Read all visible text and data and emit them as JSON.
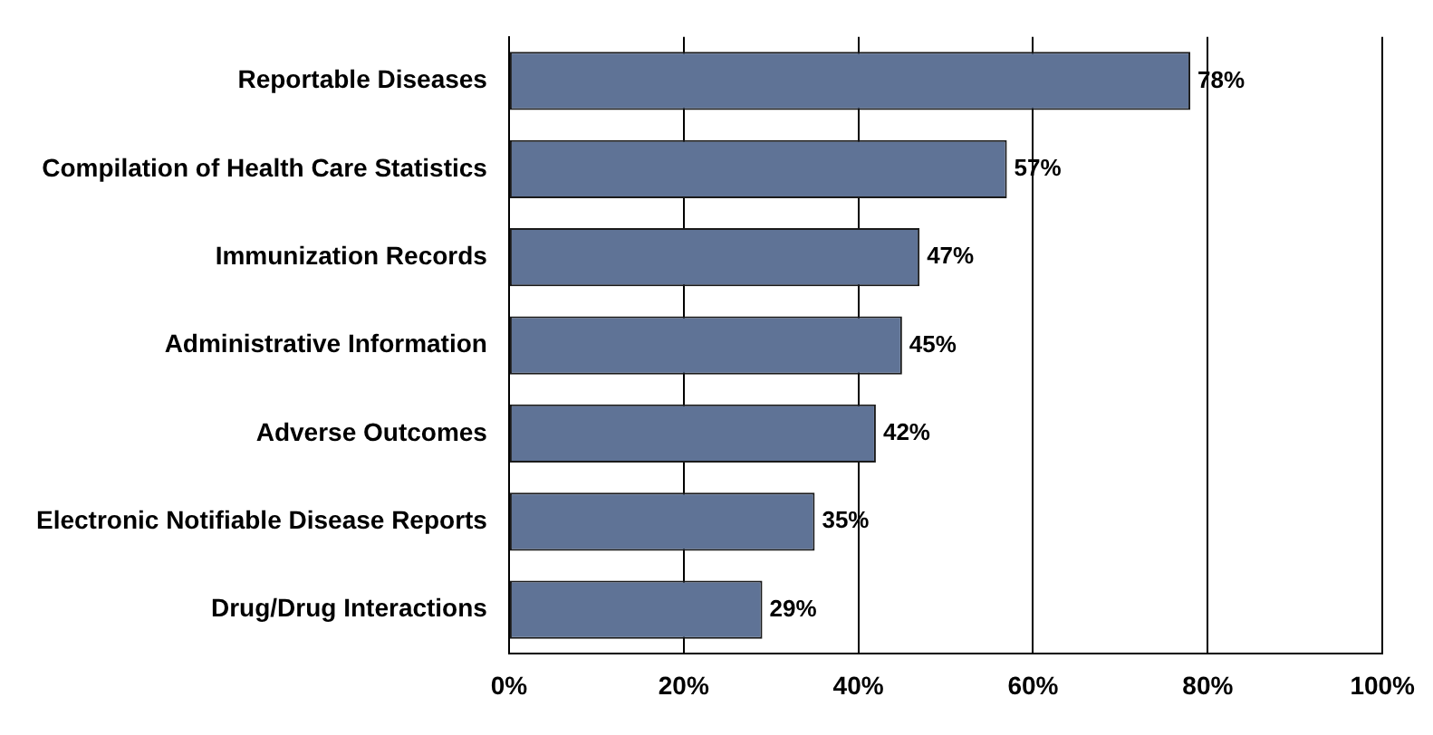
{
  "chart_data": {
    "type": "bar",
    "orientation": "horizontal",
    "categories": [
      "Reportable Diseases",
      "Compilation of Health Care Statistics",
      "Immunization Records",
      "Administrative Information",
      "Adverse Outcomes",
      "Electronic Notifiable Disease Reports",
      "Drug/Drug Interactions"
    ],
    "values": [
      78,
      57,
      47,
      45,
      42,
      35,
      29
    ],
    "color": "#5f7396",
    "xlim": [
      0,
      100
    ],
    "xticks": [
      {
        "value": 0,
        "label": "0%"
      },
      {
        "value": 20,
        "label": "20%"
      },
      {
        "value": 40,
        "label": "40%"
      },
      {
        "value": 60,
        "label": "60%"
      },
      {
        "value": 80,
        "label": "80%"
      },
      {
        "value": 100,
        "label": "100%"
      }
    ],
    "value_labels": [
      "78%",
      "57%",
      "47%",
      "45%",
      "42%",
      "35%",
      "29%"
    ],
    "grid": "x",
    "legend": false
  }
}
